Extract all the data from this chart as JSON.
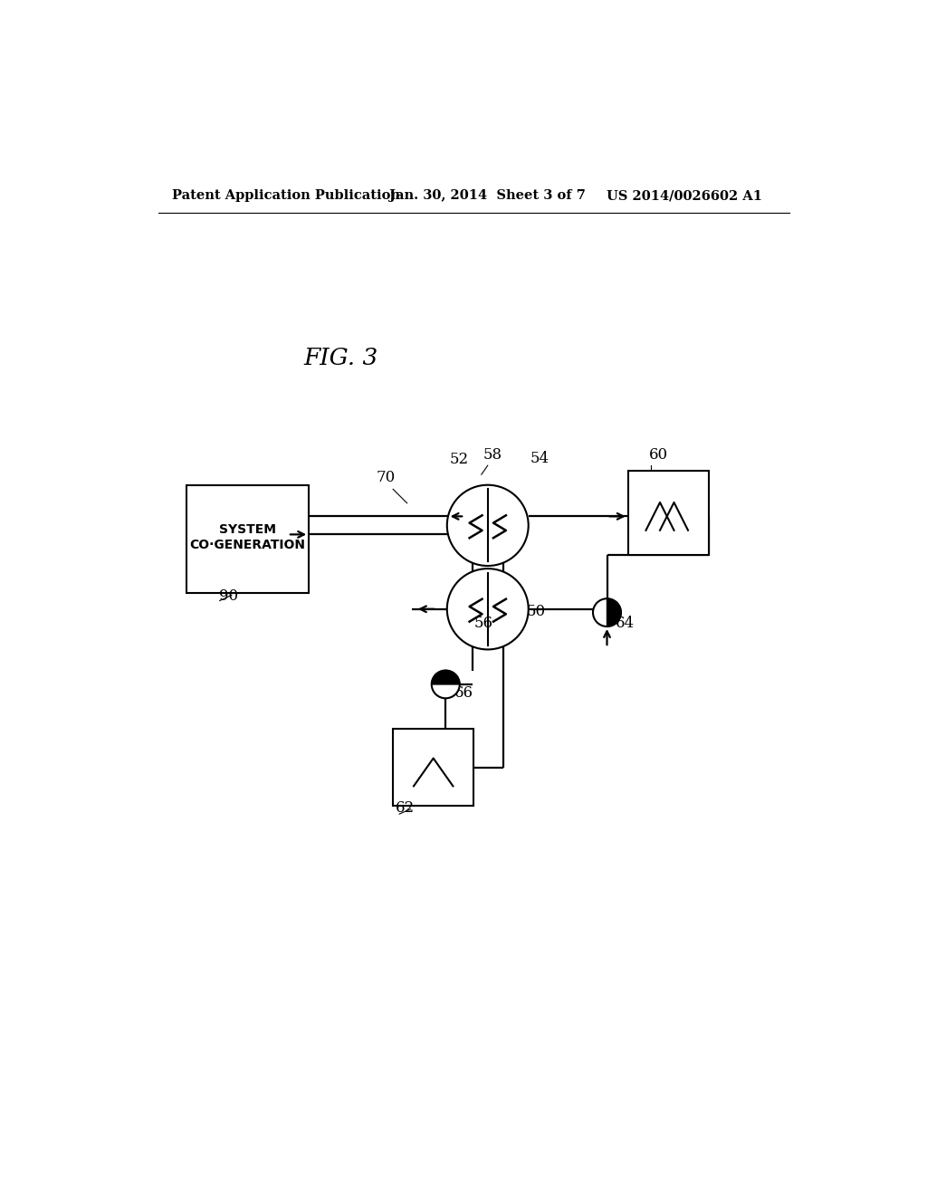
{
  "bg_color": "#ffffff",
  "header_left": "Patent Application Publication",
  "header_mid": "Jan. 30, 2014  Sheet 3 of 7",
  "header_right": "US 2014/0026602 A1",
  "fig_label": "FIG. 3",
  "labels": {
    "cogen_box": "CO·GENERATION\nSYSTEM",
    "n70": "70",
    "n52": "52",
    "n58": "58",
    "n54": "54",
    "n60": "60",
    "n50": "50",
    "n56": "56",
    "n64": "64",
    "n66": "66",
    "n62": "62",
    "n90": "90"
  }
}
